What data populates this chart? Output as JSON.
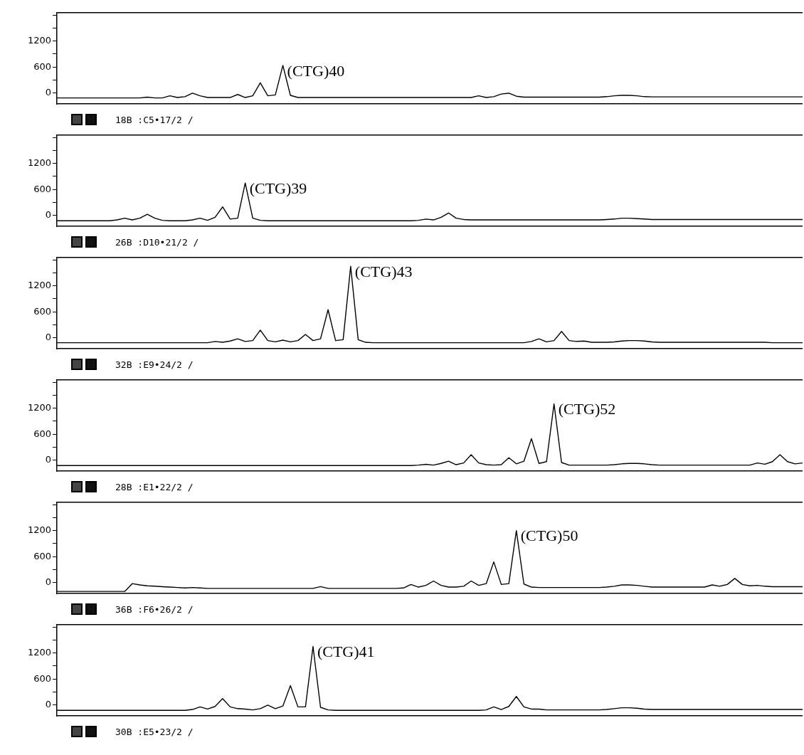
{
  "chart_data": [
    {
      "type": "line",
      "xlabel": "18B :C5•17/2 /",
      "annotations": [
        "(CTG)40"
      ],
      "tick_labels": "y",
      "legend": false,
      "grid": false,
      "marker": "none",
      "ylim": [
        -250,
        1850
      ],
      "yticks": [
        0,
        {
          "value": 300,
          "label": null
        },
        600,
        {
          "value": 900,
          "label": null
        },
        1200,
        {
          "value": 1500,
          "label": null
        },
        {
          "value": 1800,
          "label": null
        }
      ],
      "categories": [
        null,
        null,
        null,
        null,
        null,
        null,
        null,
        null,
        null,
        null,
        null,
        null,
        null,
        null,
        null,
        null,
        null,
        null,
        null,
        null,
        null,
        null,
        null,
        null,
        null,
        null,
        null,
        null,
        null,
        null,
        null,
        null,
        null,
        null,
        null,
        null,
        null,
        null,
        null,
        null,
        null,
        null,
        null,
        null,
        null,
        null,
        null,
        null,
        null,
        null,
        null,
        null,
        null,
        null,
        null,
        null,
        null,
        null,
        null,
        null,
        null,
        null,
        null,
        null,
        null,
        null,
        null,
        null,
        null,
        null,
        null,
        null,
        null,
        null,
        null,
        null,
        null,
        null,
        null,
        null,
        null,
        null,
        null,
        null,
        null,
        null,
        null,
        null,
        null,
        null,
        null,
        null,
        null,
        null,
        null,
        null,
        null,
        null,
        null,
        null
      ],
      "color": "#000000",
      "values": [
        -110,
        -110,
        -110,
        -110,
        -110,
        -110,
        -110,
        -110,
        -110,
        -110,
        -110,
        -110,
        -90,
        -110,
        -110,
        -60,
        -100,
        -80,
        0,
        -60,
        -100,
        -100,
        -100,
        -100,
        -30,
        -100,
        -60,
        240,
        -60,
        -40,
        640,
        -50,
        -100,
        -100,
        -100,
        -100,
        -100,
        -100,
        -100,
        -100,
        -100,
        -100,
        -100,
        -100,
        -100,
        -100,
        -100,
        -100,
        -100,
        -100,
        -100,
        -100,
        -100,
        -100,
        -100,
        -100,
        -60,
        -100,
        -80,
        -20,
        0,
        -70,
        -90,
        -90,
        -90,
        -90,
        -90,
        -90,
        -90,
        -90,
        -90,
        -90,
        -90,
        -80,
        -60,
        -50,
        -50,
        -60,
        -80,
        -85,
        -85,
        -85,
        -85,
        -85,
        -85,
        -85,
        -85,
        -85,
        -85,
        -85,
        -85,
        -85,
        -85,
        -85,
        -85,
        -85,
        -85,
        -85,
        -85,
        -85
      ]
    },
    {
      "type": "line",
      "xlabel": "26B :D10•21/2 /",
      "annotations": [
        "(CTG)39"
      ],
      "tick_labels": "y",
      "legend": false,
      "grid": false,
      "marker": "none",
      "ylim": [
        -250,
        1850
      ],
      "yticks": [
        0,
        {
          "value": 300,
          "label": null
        },
        600,
        {
          "value": 900,
          "label": null
        },
        1200,
        {
          "value": 1500,
          "label": null
        },
        {
          "value": 1800,
          "label": null
        }
      ],
      "categories": [
        null,
        null,
        null,
        null,
        null,
        null,
        null,
        null,
        null,
        null,
        null,
        null,
        null,
        null,
        null,
        null,
        null,
        null,
        null,
        null,
        null,
        null,
        null,
        null,
        null,
        null,
        null,
        null,
        null,
        null,
        null,
        null,
        null,
        null,
        null,
        null,
        null,
        null,
        null,
        null,
        null,
        null,
        null,
        null,
        null,
        null,
        null,
        null,
        null,
        null,
        null,
        null,
        null,
        null,
        null,
        null,
        null,
        null,
        null,
        null,
        null,
        null,
        null,
        null,
        null,
        null,
        null,
        null,
        null,
        null,
        null,
        null,
        null,
        null,
        null,
        null,
        null,
        null,
        null,
        null,
        null,
        null,
        null,
        null,
        null,
        null,
        null,
        null,
        null,
        null,
        null,
        null,
        null,
        null,
        null,
        null,
        null,
        null,
        null,
        null
      ],
      "color": "#000000",
      "values": [
        -120,
        -120,
        -120,
        -120,
        -120,
        -120,
        -120,
        -120,
        -100,
        -60,
        -100,
        -60,
        30,
        -60,
        -110,
        -120,
        -120,
        -120,
        -100,
        -60,
        -110,
        -40,
        200,
        -80,
        -60,
        750,
        -60,
        -110,
        -120,
        -120,
        -120,
        -120,
        -120,
        -120,
        -120,
        -120,
        -120,
        -120,
        -120,
        -120,
        -120,
        -120,
        -120,
        -120,
        -120,
        -120,
        -120,
        -120,
        -110,
        -80,
        -100,
        -40,
        60,
        -60,
        -90,
        -100,
        -100,
        -100,
        -100,
        -100,
        -100,
        -100,
        -100,
        -100,
        -100,
        -100,
        -100,
        -100,
        -100,
        -100,
        -100,
        -100,
        -100,
        -90,
        -80,
        -60,
        -60,
        -70,
        -80,
        -90,
        -90,
        -90,
        -90,
        -90,
        -90,
        -90,
        -90,
        -90,
        -90,
        -90,
        -90,
        -90,
        -90,
        -90,
        -90,
        -90,
        -90,
        -90,
        -90,
        -90
      ]
    },
    {
      "type": "line",
      "xlabel": "32B :E9•24/2 /",
      "annotations": [
        "(CTG)43"
      ],
      "tick_labels": "y",
      "legend": false,
      "grid": false,
      "marker": "none",
      "ylim": [
        -250,
        1850
      ],
      "yticks": [
        0,
        {
          "value": 300,
          "label": null
        },
        600,
        {
          "value": 900,
          "label": null
        },
        1200,
        {
          "value": 1500,
          "label": null
        },
        {
          "value": 1800,
          "label": null
        }
      ],
      "categories": [
        null,
        null,
        null,
        null,
        null,
        null,
        null,
        null,
        null,
        null,
        null,
        null,
        null,
        null,
        null,
        null,
        null,
        null,
        null,
        null,
        null,
        null,
        null,
        null,
        null,
        null,
        null,
        null,
        null,
        null,
        null,
        null,
        null,
        null,
        null,
        null,
        null,
        null,
        null,
        null,
        null,
        null,
        null,
        null,
        null,
        null,
        null,
        null,
        null,
        null,
        null,
        null,
        null,
        null,
        null,
        null,
        null,
        null,
        null,
        null,
        null,
        null,
        null,
        null,
        null,
        null,
        null,
        null,
        null,
        null,
        null,
        null,
        null,
        null,
        null,
        null,
        null,
        null,
        null,
        null,
        null,
        null,
        null,
        null,
        null,
        null,
        null,
        null,
        null,
        null,
        null,
        null,
        null,
        null,
        null,
        null,
        null,
        null,
        null,
        null
      ],
      "color": "#000000",
      "values": [
        -110,
        -110,
        -110,
        -110,
        -110,
        -110,
        -110,
        -110,
        -110,
        -110,
        -110,
        -110,
        -110,
        -110,
        -110,
        -110,
        -110,
        -110,
        -110,
        -110,
        -110,
        -80,
        -100,
        -70,
        -20,
        -80,
        -60,
        180,
        -60,
        -90,
        -50,
        -90,
        -60,
        80,
        -60,
        -20,
        650,
        -60,
        -40,
        1650,
        -40,
        -100,
        -110,
        -110,
        -110,
        -110,
        -110,
        -110,
        -110,
        -110,
        -110,
        -110,
        -110,
        -110,
        -110,
        -110,
        -110,
        -110,
        -110,
        -110,
        -110,
        -110,
        -110,
        -80,
        -20,
        -90,
        -60,
        150,
        -60,
        -80,
        -70,
        -100,
        -100,
        -100,
        -90,
        -70,
        -60,
        -60,
        -70,
        -90,
        -100,
        -100,
        -100,
        -100,
        -100,
        -100,
        -100,
        -100,
        -100,
        -100,
        -100,
        -100,
        -100,
        -100,
        -100,
        -110,
        -110,
        -110,
        -110,
        -110
      ]
    },
    {
      "type": "line",
      "xlabel": "28B :E1•22/2 /",
      "annotations": [
        "(CTG)52"
      ],
      "tick_labels": "y",
      "legend": false,
      "grid": false,
      "marker": "none",
      "ylim": [
        -250,
        1850
      ],
      "yticks": [
        0,
        {
          "value": 300,
          "label": null
        },
        600,
        {
          "value": 900,
          "label": null
        },
        1200,
        {
          "value": 1500,
          "label": null
        },
        {
          "value": 1800,
          "label": null
        }
      ],
      "categories": [
        null,
        null,
        null,
        null,
        null,
        null,
        null,
        null,
        null,
        null,
        null,
        null,
        null,
        null,
        null,
        null,
        null,
        null,
        null,
        null,
        null,
        null,
        null,
        null,
        null,
        null,
        null,
        null,
        null,
        null,
        null,
        null,
        null,
        null,
        null,
        null,
        null,
        null,
        null,
        null,
        null,
        null,
        null,
        null,
        null,
        null,
        null,
        null,
        null,
        null,
        null,
        null,
        null,
        null,
        null,
        null,
        null,
        null,
        null,
        null,
        null,
        null,
        null,
        null,
        null,
        null,
        null,
        null,
        null,
        null,
        null,
        null,
        null,
        null,
        null,
        null,
        null,
        null,
        null,
        null,
        null,
        null,
        null,
        null,
        null,
        null,
        null,
        null,
        null,
        null,
        null,
        null,
        null,
        null,
        null,
        null,
        null,
        null,
        null,
        null
      ],
      "color": "#000000",
      "values": [
        -120,
        -120,
        -120,
        -120,
        -120,
        -120,
        -120,
        -120,
        -120,
        -120,
        -120,
        -120,
        -120,
        -120,
        -120,
        -120,
        -120,
        -120,
        -120,
        -120,
        -120,
        -120,
        -120,
        -120,
        -120,
        -120,
        -120,
        -120,
        -120,
        -120,
        -120,
        -120,
        -120,
        -120,
        -120,
        -120,
        -120,
        -120,
        -120,
        -120,
        -120,
        -120,
        -120,
        -120,
        -120,
        -120,
        -120,
        -120,
        -110,
        -90,
        -110,
        -70,
        -20,
        -100,
        -60,
        130,
        -60,
        -100,
        -110,
        -100,
        60,
        -80,
        -20,
        500,
        -70,
        -30,
        1300,
        -50,
        -110,
        -110,
        -110,
        -110,
        -110,
        -110,
        -100,
        -80,
        -70,
        -70,
        -80,
        -100,
        -110,
        -110,
        -110,
        -110,
        -110,
        -110,
        -110,
        -110,
        -110,
        -110,
        -110,
        -110,
        -110,
        -60,
        -90,
        -30,
        130,
        -30,
        -80,
        -60
      ]
    },
    {
      "type": "line",
      "xlabel": "36B :F6•26/2 /",
      "annotations": [
        "(CTG)50"
      ],
      "tick_labels": "y",
      "legend": false,
      "grid": false,
      "marker": "none",
      "ylim": [
        -250,
        1850
      ],
      "yticks": [
        0,
        {
          "value": 300,
          "label": null
        },
        600,
        {
          "value": 900,
          "label": null
        },
        1200,
        {
          "value": 1500,
          "label": null
        },
        {
          "value": 1800,
          "label": null
        }
      ],
      "categories": [
        null,
        null,
        null,
        null,
        null,
        null,
        null,
        null,
        null,
        null,
        null,
        null,
        null,
        null,
        null,
        null,
        null,
        null,
        null,
        null,
        null,
        null,
        null,
        null,
        null,
        null,
        null,
        null,
        null,
        null,
        null,
        null,
        null,
        null,
        null,
        null,
        null,
        null,
        null,
        null,
        null,
        null,
        null,
        null,
        null,
        null,
        null,
        null,
        null,
        null,
        null,
        null,
        null,
        null,
        null,
        null,
        null,
        null,
        null,
        null,
        null,
        null,
        null,
        null,
        null,
        null,
        null,
        null,
        null,
        null,
        null,
        null,
        null,
        null,
        null,
        null,
        null,
        null,
        null,
        null,
        null,
        null,
        null,
        null,
        null,
        null,
        null,
        null,
        null,
        null,
        null,
        null,
        null,
        null,
        null,
        null,
        null,
        null,
        null,
        null
      ],
      "color": "#000000",
      "values": [
        -200,
        -200,
        -200,
        -200,
        -200,
        -200,
        -200,
        -200,
        -200,
        -200,
        -20,
        -50,
        -70,
        -80,
        -90,
        -100,
        -110,
        -120,
        -110,
        -120,
        -130,
        -130,
        -130,
        -130,
        -130,
        -130,
        -130,
        -130,
        -130,
        -130,
        -130,
        -130,
        -130,
        -130,
        -130,
        -90,
        -130,
        -130,
        -130,
        -130,
        -130,
        -130,
        -130,
        -130,
        -130,
        -130,
        -120,
        -40,
        -100,
        -60,
        40,
        -60,
        -100,
        -100,
        -80,
        40,
        -60,
        -20,
        480,
        -40,
        -20,
        1200,
        -30,
        -100,
        -110,
        -110,
        -110,
        -110,
        -110,
        -110,
        -110,
        -110,
        -110,
        -100,
        -80,
        -50,
        -50,
        -60,
        -80,
        -100,
        -100,
        -100,
        -100,
        -100,
        -100,
        -100,
        -100,
        -50,
        -80,
        -40,
        100,
        -40,
        -70,
        -60,
        -80,
        -90,
        -90,
        -90,
        -90,
        -90
      ]
    },
    {
      "type": "line",
      "xlabel": "30B :E5•23/2 /",
      "annotations": [
        "(CTG)41"
      ],
      "tick_labels": "y",
      "legend": false,
      "grid": false,
      "marker": "none",
      "ylim": [
        -250,
        1850
      ],
      "yticks": [
        0,
        {
          "value": 300,
          "label": null
        },
        600,
        {
          "value": 900,
          "label": null
        },
        1200,
        {
          "value": 1500,
          "label": null
        },
        {
          "value": 1800,
          "label": null
        }
      ],
      "categories": [
        null,
        null,
        null,
        null,
        null,
        null,
        null,
        null,
        null,
        null,
        null,
        null,
        null,
        null,
        null,
        null,
        null,
        null,
        null,
        null,
        null,
        null,
        null,
        null,
        null,
        null,
        null,
        null,
        null,
        null,
        null,
        null,
        null,
        null,
        null,
        null,
        null,
        null,
        null,
        null,
        null,
        null,
        null,
        null,
        null,
        null,
        null,
        null,
        null,
        null,
        null,
        null,
        null,
        null,
        null,
        null,
        null,
        null,
        null,
        null,
        null,
        null,
        null,
        null,
        null,
        null,
        null,
        null,
        null,
        null,
        null,
        null,
        null,
        null,
        null,
        null,
        null,
        null,
        null,
        null,
        null,
        null,
        null,
        null,
        null,
        null,
        null,
        null,
        null,
        null,
        null,
        null,
        null,
        null,
        null,
        null,
        null,
        null,
        null,
        null
      ],
      "color": "#000000",
      "values": [
        -120,
        -120,
        -120,
        -120,
        -120,
        -120,
        -120,
        -120,
        -120,
        -120,
        -120,
        -120,
        -120,
        -120,
        -120,
        -120,
        -120,
        -120,
        -100,
        -40,
        -90,
        -30,
        150,
        -40,
        -80,
        -90,
        -110,
        -80,
        0,
        -80,
        -20,
        450,
        -40,
        -40,
        1350,
        -50,
        -110,
        -120,
        -120,
        -120,
        -120,
        -120,
        -120,
        -120,
        -120,
        -120,
        -120,
        -120,
        -120,
        -120,
        -120,
        -120,
        -120,
        -120,
        -120,
        -120,
        -120,
        -110,
        -40,
        -100,
        -30,
        200,
        -40,
        -90,
        -90,
        -110,
        -110,
        -110,
        -110,
        -110,
        -110,
        -110,
        -110,
        -100,
        -80,
        -60,
        -60,
        -70,
        -90,
        -100,
        -100,
        -100,
        -100,
        -100,
        -100,
        -100,
        -100,
        -100,
        -100,
        -100,
        -100,
        -100,
        -100,
        -100,
        -100,
        -100,
        -100,
        -100,
        -100,
        -100
      ]
    }
  ]
}
